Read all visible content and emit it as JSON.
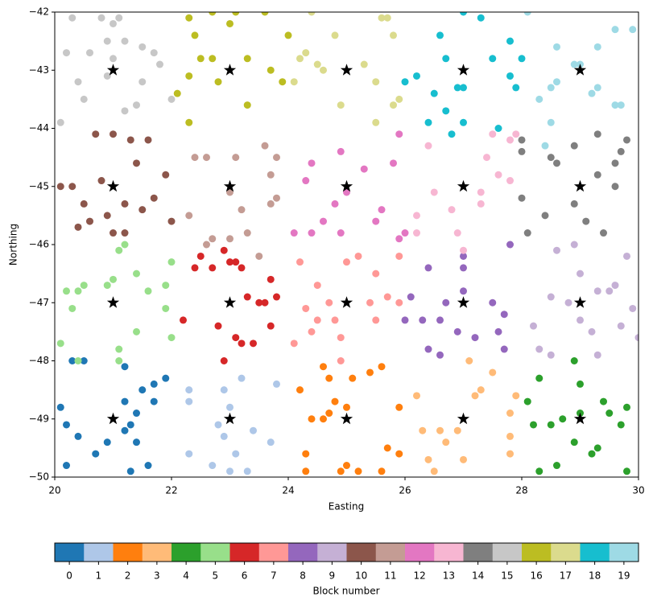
{
  "chart_data": {
    "type": "scatter",
    "x_label": "Easting",
    "y_label": "Northing",
    "colorbar_label": "Block number",
    "xlim": [
      20,
      30
    ],
    "ylim": [
      -50,
      -42
    ],
    "xticks": [
      20,
      22,
      24,
      26,
      28,
      30
    ],
    "yticks": [
      {
        "value": -50,
        "label": "−50"
      },
      {
        "value": -49,
        "label": "−49"
      },
      {
        "value": -48,
        "label": "−48"
      },
      {
        "value": -47,
        "label": "−47"
      },
      {
        "value": -46,
        "label": "−46"
      },
      {
        "value": -45,
        "label": "−45"
      },
      {
        "value": -44,
        "label": "−44"
      },
      {
        "value": -43,
        "label": "−43"
      },
      {
        "value": -42,
        "label": "−42"
      }
    ],
    "series": [
      {
        "name": "0",
        "color": "#1f77b4",
        "x": [
          20.1,
          20.3,
          20.2,
          20.4,
          20.2,
          20.5,
          20.9,
          21.2,
          21.3,
          21.4,
          21.5,
          21.7,
          21.9,
          21.4,
          21.3,
          21.6,
          21.2,
          20.7,
          21.7,
          21.2
        ],
        "y": [
          -48.8,
          -48.0,
          -49.1,
          -49.3,
          -49.8,
          -48.0,
          -49.4,
          -48.1,
          -49.1,
          -48.9,
          -48.5,
          -48.4,
          -48.3,
          -49.4,
          -49.9,
          -49.8,
          -48.7,
          -49.6,
          -48.7,
          -49.2
        ]
      },
      {
        "name": "1",
        "color": "#aec7e8",
        "x": [
          22.3,
          22.3,
          22.3,
          22.8,
          22.9,
          22.9,
          23.0,
          23.1,
          23.2,
          23.0,
          23.4,
          23.7,
          23.8,
          22.7,
          23.3
        ],
        "y": [
          -48.5,
          -48.7,
          -49.6,
          -49.1,
          -49.3,
          -48.5,
          -48.8,
          -49.6,
          -48.3,
          -49.9,
          -49.2,
          -49.4,
          -48.4,
          -49.8,
          -49.9
        ]
      },
      {
        "name": "2",
        "color": "#ff7f0e",
        "x": [
          24.2,
          24.3,
          24.3,
          24.4,
          24.6,
          24.7,
          24.8,
          24.7,
          24.9,
          25.0,
          25.1,
          25.0,
          25.4,
          25.6,
          25.7,
          25.9,
          25.6,
          25.9,
          25.2,
          24.6
        ],
        "y": [
          -48.5,
          -49.6,
          -49.9,
          -49.0,
          -48.1,
          -48.3,
          -48.7,
          -48.9,
          -49.9,
          -48.8,
          -48.3,
          -49.8,
          -48.2,
          -48.1,
          -49.5,
          -48.8,
          -49.9,
          -49.6,
          -49.9,
          -49.0
        ]
      },
      {
        "name": "3",
        "color": "#ffbb78",
        "x": [
          26.2,
          26.3,
          26.4,
          26.6,
          26.7,
          26.5,
          27.1,
          27.2,
          27.3,
          27.5,
          27.8,
          27.9,
          27.8,
          27.0,
          26.9,
          27.8
        ],
        "y": [
          -48.6,
          -49.2,
          -49.7,
          -49.2,
          -49.4,
          -49.9,
          -48.0,
          -48.6,
          -48.5,
          -48.2,
          -48.9,
          -48.6,
          -49.6,
          -49.7,
          -49.2,
          -49.3
        ]
      },
      {
        "name": "4",
        "color": "#2ca02c",
        "x": [
          28.1,
          28.3,
          28.5,
          28.6,
          28.7,
          28.9,
          29.0,
          29.0,
          28.9,
          29.2,
          29.3,
          29.4,
          29.5,
          29.7,
          29.8,
          29.8,
          28.3,
          28.2
        ],
        "y": [
          -48.7,
          -48.3,
          -49.1,
          -49.8,
          -49.0,
          -48.0,
          -48.4,
          -48.9,
          -49.4,
          -49.6,
          -49.5,
          -48.7,
          -48.9,
          -49.1,
          -48.8,
          -49.9,
          -49.9,
          -49.1
        ]
      },
      {
        "name": "5",
        "color": "#98df8a",
        "x": [
          20.1,
          20.2,
          20.3,
          20.4,
          20.5,
          20.4,
          20.9,
          21.0,
          21.1,
          21.1,
          21.2,
          21.4,
          21.4,
          21.6,
          21.9,
          21.9,
          22.0,
          22.0,
          21.1
        ],
        "y": [
          -47.7,
          -46.8,
          -47.1,
          -46.8,
          -46.7,
          -48.0,
          -46.7,
          -46.6,
          -46.1,
          -47.8,
          -46.0,
          -46.5,
          -47.5,
          -46.8,
          -46.7,
          -47.1,
          -46.3,
          -47.6,
          -48.0
        ]
      },
      {
        "name": "6",
        "color": "#d62728",
        "x": [
          22.2,
          22.4,
          22.5,
          22.7,
          22.8,
          22.9,
          22.9,
          23.0,
          23.1,
          23.1,
          23.2,
          23.3,
          23.2,
          23.4,
          23.5,
          23.6,
          23.7,
          23.7,
          23.8
        ],
        "y": [
          -47.3,
          -46.4,
          -46.2,
          -46.4,
          -47.4,
          -48.0,
          -46.1,
          -46.3,
          -47.6,
          -46.3,
          -46.4,
          -46.9,
          -47.7,
          -47.7,
          -47.0,
          -47.0,
          -46.6,
          -47.4,
          -46.9
        ]
      },
      {
        "name": "7",
        "color": "#ff9896",
        "x": [
          24.1,
          24.2,
          24.3,
          24.4,
          24.5,
          24.5,
          24.7,
          24.8,
          24.9,
          25.0,
          25.2,
          25.4,
          25.5,
          25.5,
          25.7,
          25.9,
          25.9,
          24.9
        ],
        "y": [
          -47.7,
          -46.3,
          -47.1,
          -47.5,
          -47.3,
          -46.7,
          -47.0,
          -47.3,
          -48.0,
          -46.3,
          -46.2,
          -47.0,
          -47.3,
          -46.5,
          -46.9,
          -46.2,
          -47.0,
          -47.6
        ]
      },
      {
        "name": "8",
        "color": "#9467bd",
        "x": [
          26.1,
          26.3,
          26.4,
          26.4,
          26.6,
          26.7,
          26.6,
          26.9,
          27.0,
          27.0,
          27.0,
          27.2,
          27.5,
          27.6,
          27.7,
          27.8,
          27.7,
          26.0
        ],
        "y": [
          -46.9,
          -47.3,
          -46.4,
          -47.8,
          -47.9,
          -47.0,
          -47.3,
          -47.5,
          -46.8,
          -46.2,
          -46.4,
          -47.6,
          -47.0,
          -47.5,
          -47.2,
          -46.0,
          -47.8,
          -47.3
        ]
      },
      {
        "name": "9",
        "color": "#c5b0d5",
        "x": [
          28.2,
          28.3,
          28.5,
          28.5,
          28.6,
          28.8,
          28.9,
          29.0,
          29.0,
          29.2,
          29.3,
          29.3,
          29.5,
          29.6,
          29.7,
          29.9,
          30.0,
          29.8
        ],
        "y": [
          -47.4,
          -47.8,
          -46.9,
          -47.9,
          -46.1,
          -47.0,
          -46.0,
          -46.5,
          -47.3,
          -47.5,
          -47.9,
          -46.8,
          -46.8,
          -46.7,
          -47.4,
          -47.1,
          -47.6,
          -46.2
        ]
      },
      {
        "name": "10",
        "color": "#8c564b",
        "x": [
          20.1,
          20.3,
          20.4,
          20.5,
          20.6,
          20.7,
          20.8,
          20.9,
          21.0,
          21.0,
          21.2,
          21.3,
          21.4,
          21.5,
          21.6,
          21.7,
          21.9,
          22.0,
          21.2
        ],
        "y": [
          -45.0,
          -45.0,
          -45.7,
          -45.3,
          -45.6,
          -44.1,
          -44.9,
          -45.5,
          -45.8,
          -44.1,
          -45.3,
          -44.2,
          -44.6,
          -45.4,
          -44.2,
          -45.2,
          -44.8,
          -45.6,
          -45.8
        ]
      },
      {
        "name": "11",
        "color": "#c49c94",
        "x": [
          22.3,
          22.4,
          22.6,
          22.7,
          23.0,
          23.0,
          23.1,
          23.2,
          23.3,
          23.5,
          23.6,
          23.7,
          23.8,
          23.7,
          23.8,
          22.6
        ],
        "y": [
          -45.5,
          -44.5,
          -44.5,
          -45.9,
          -45.9,
          -45.1,
          -44.5,
          -45.4,
          -45.8,
          -46.2,
          -44.3,
          -44.8,
          -45.2,
          -45.3,
          -44.5,
          -46.0
        ]
      },
      {
        "name": "12",
        "color": "#e377c2",
        "x": [
          24.1,
          24.3,
          24.4,
          24.4,
          24.6,
          24.8,
          24.9,
          24.9,
          25.0,
          25.3,
          25.5,
          25.6,
          25.8,
          25.9,
          26.0,
          25.9
        ],
        "y": [
          -45.8,
          -44.9,
          -44.6,
          -45.8,
          -45.6,
          -45.3,
          -44.4,
          -45.8,
          -45.1,
          -44.7,
          -45.6,
          -45.4,
          -44.6,
          -44.1,
          -45.8,
          -45.9
        ]
      },
      {
        "name": "13",
        "color": "#f7b6d2",
        "x": [
          26.2,
          26.4,
          26.5,
          26.8,
          26.9,
          27.0,
          27.3,
          27.3,
          27.4,
          27.5,
          27.6,
          27.8,
          27.8,
          27.9,
          26.2
        ],
        "y": [
          -45.5,
          -44.3,
          -45.1,
          -45.4,
          -45.8,
          -46.1,
          -45.3,
          -45.1,
          -44.5,
          -44.1,
          -44.8,
          -44.2,
          -44.9,
          -44.1,
          -45.8
        ]
      },
      {
        "name": "14",
        "color": "#7f7f7f",
        "x": [
          28.0,
          28.0,
          28.0,
          28.1,
          28.4,
          28.5,
          28.6,
          28.9,
          28.9,
          29.1,
          29.3,
          29.3,
          29.4,
          29.6,
          29.7,
          29.8,
          29.6
        ],
        "y": [
          -44.2,
          -44.4,
          -45.2,
          -45.8,
          -45.5,
          -44.5,
          -44.6,
          -45.3,
          -44.3,
          -45.6,
          -44.8,
          -44.1,
          -45.8,
          -45.0,
          -44.4,
          -44.2,
          -44.6
        ]
      },
      {
        "name": "15",
        "color": "#c7c7c7",
        "x": [
          20.1,
          20.2,
          20.3,
          20.4,
          20.5,
          20.6,
          20.8,
          20.9,
          20.9,
          21.0,
          21.0,
          21.2,
          21.2,
          21.4,
          21.5,
          21.5,
          21.7,
          21.8,
          22.0,
          21.1
        ],
        "y": [
          -43.9,
          -42.7,
          -42.1,
          -43.2,
          -43.5,
          -42.7,
          -42.1,
          -43.1,
          -42.5,
          -42.2,
          -42.8,
          -42.5,
          -43.7,
          -43.6,
          -42.6,
          -43.2,
          -42.7,
          -42.9,
          -43.5,
          -42.1
        ]
      },
      {
        "name": "16",
        "color": "#bcbd22",
        "x": [
          22.3,
          22.3,
          22.4,
          22.3,
          22.5,
          22.7,
          22.7,
          22.8,
          23.0,
          23.1,
          23.3,
          23.3,
          23.6,
          23.7,
          23.9,
          24.0,
          22.1
        ],
        "y": [
          -42.1,
          -43.1,
          -42.4,
          -43.9,
          -42.8,
          -42.0,
          -42.8,
          -43.2,
          -42.2,
          -42.0,
          -43.6,
          -42.8,
          -42.0,
          -43.0,
          -43.2,
          -42.4,
          -43.4
        ]
      },
      {
        "name": "17",
        "color": "#dbdb8d",
        "x": [
          24.1,
          24.2,
          24.3,
          24.4,
          24.5,
          24.6,
          24.8,
          24.9,
          25.3,
          25.5,
          25.5,
          25.7,
          25.8,
          25.8,
          25.9,
          25.6
        ],
        "y": [
          -43.2,
          -42.8,
          -42.7,
          -42.0,
          -42.9,
          -43.0,
          -42.4,
          -43.6,
          -42.9,
          -43.2,
          -43.9,
          -42.1,
          -42.4,
          -43.6,
          -43.5,
          -42.1
        ]
      },
      {
        "name": "18",
        "color": "#17becf",
        "x": [
          26.0,
          26.2,
          26.4,
          26.5,
          26.6,
          26.7,
          26.7,
          26.9,
          27.0,
          27.0,
          27.0,
          27.3,
          27.5,
          27.6,
          27.8,
          27.8,
          27.9,
          28.0,
          26.8
        ],
        "y": [
          -43.2,
          -43.1,
          -43.9,
          -43.4,
          -42.4,
          -42.8,
          -43.7,
          -43.3,
          -43.9,
          -42.0,
          -43.3,
          -42.1,
          -42.8,
          -44.0,
          -42.5,
          -43.1,
          -43.3,
          -42.8,
          -44.1
        ]
      },
      {
        "name": "19",
        "color": "#9edae5",
        "x": [
          28.1,
          28.3,
          28.5,
          28.5,
          28.6,
          28.6,
          28.9,
          29.0,
          29.2,
          29.3,
          29.3,
          29.6,
          29.6,
          29.7,
          29.9,
          28.4
        ],
        "y": [
          -42.0,
          -43.5,
          -43.9,
          -43.3,
          -43.2,
          -42.6,
          -42.9,
          -42.9,
          -43.4,
          -42.6,
          -43.3,
          -43.6,
          -42.3,
          -43.6,
          -42.3,
          -44.3
        ]
      }
    ],
    "centers": {
      "color": "#000000",
      "marker": "star",
      "x": [
        21,
        23,
        25,
        27,
        29,
        21,
        23,
        25,
        27,
        29,
        21,
        23,
        25,
        27,
        29,
        21,
        23,
        25,
        27,
        29
      ],
      "y": [
        -43,
        -43,
        -43,
        -43,
        -43,
        -45,
        -45,
        -45,
        -45,
        -45,
        -47,
        -47,
        -47,
        -47,
        -47,
        -49,
        -49,
        -49,
        -49,
        -49
      ]
    }
  }
}
